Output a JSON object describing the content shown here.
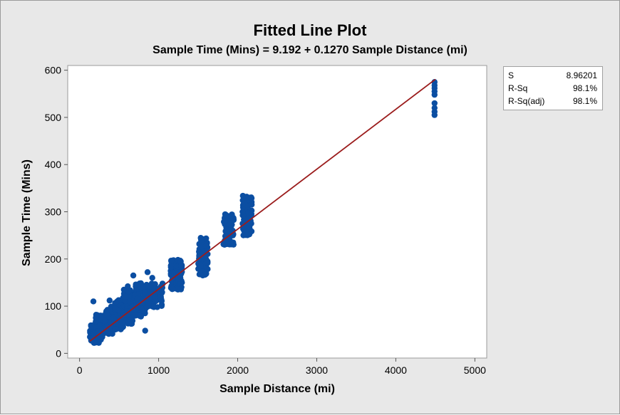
{
  "chart_data": {
    "type": "scatter",
    "title": "Fitted Line Plot",
    "subtitle": "Sample Time (Mins) = 9.192 + 0.1270 Sample Distance (mi)",
    "xlabel": "Sample Distance (mi)",
    "ylabel": "Sample Time (Mins)",
    "xlim": [
      -150,
      5150
    ],
    "ylim": [
      -10,
      610
    ],
    "xticks": [
      0,
      1000,
      2000,
      3000,
      4000,
      5000
    ],
    "yticks": [
      0,
      100,
      200,
      300,
      400,
      500,
      600
    ],
    "fit": {
      "intercept": 9.192,
      "slope": 0.127,
      "x_range": [
        130,
        4500
      ]
    },
    "series": [
      {
        "name": "observations",
        "clusters": [
          {
            "x": [
              130,
              300
            ],
            "y": [
              22,
              62
            ]
          },
          {
            "x": [
              200,
              420
            ],
            "y": [
              40,
              82
            ]
          },
          {
            "x": [
              320,
              560
            ],
            "y": [
              50,
              100
            ]
          },
          {
            "x": [
              420,
              680
            ],
            "y": [
              62,
              118
            ]
          },
          {
            "x": [
              550,
              860
            ],
            "y": [
              78,
              140
            ]
          },
          {
            "x": [
              700,
              1060
            ],
            "y": [
              95,
              150
            ]
          },
          {
            "x": [
              1150,
              1300
            ],
            "y": [
              135,
              200
            ]
          },
          {
            "x": [
              1500,
              1620
            ],
            "y": [
              165,
              245
            ]
          },
          {
            "x": [
              1820,
              1950
            ],
            "y": [
              230,
              295
            ]
          },
          {
            "x": [
              2060,
              2180
            ],
            "y": [
              250,
              335
            ]
          }
        ],
        "points": [
          [
            175,
            110
          ],
          [
            380,
            112
          ],
          [
            580,
            120
          ],
          [
            680,
            165
          ],
          [
            760,
            148
          ],
          [
            860,
            172
          ],
          [
            830,
            48
          ],
          [
            610,
            142
          ],
          [
            450,
            95
          ],
          [
            1000,
            135
          ],
          [
            1040,
            128
          ],
          [
            920,
            160
          ],
          [
            4490,
            575
          ],
          [
            4490,
            568
          ],
          [
            4490,
            562
          ],
          [
            4490,
            555
          ],
          [
            4490,
            548
          ],
          [
            4490,
            530
          ],
          [
            4490,
            520
          ],
          [
            4490,
            512
          ],
          [
            4490,
            505
          ]
        ]
      }
    ],
    "stats": [
      {
        "label": "S",
        "value": "8.96201"
      },
      {
        "label": "R-Sq",
        "value": "98.1%"
      },
      {
        "label": "R-Sq(adj)",
        "value": "98.1%"
      }
    ],
    "colors": {
      "point": "#0b4ea2",
      "fit": "#9b1c1c"
    }
  }
}
